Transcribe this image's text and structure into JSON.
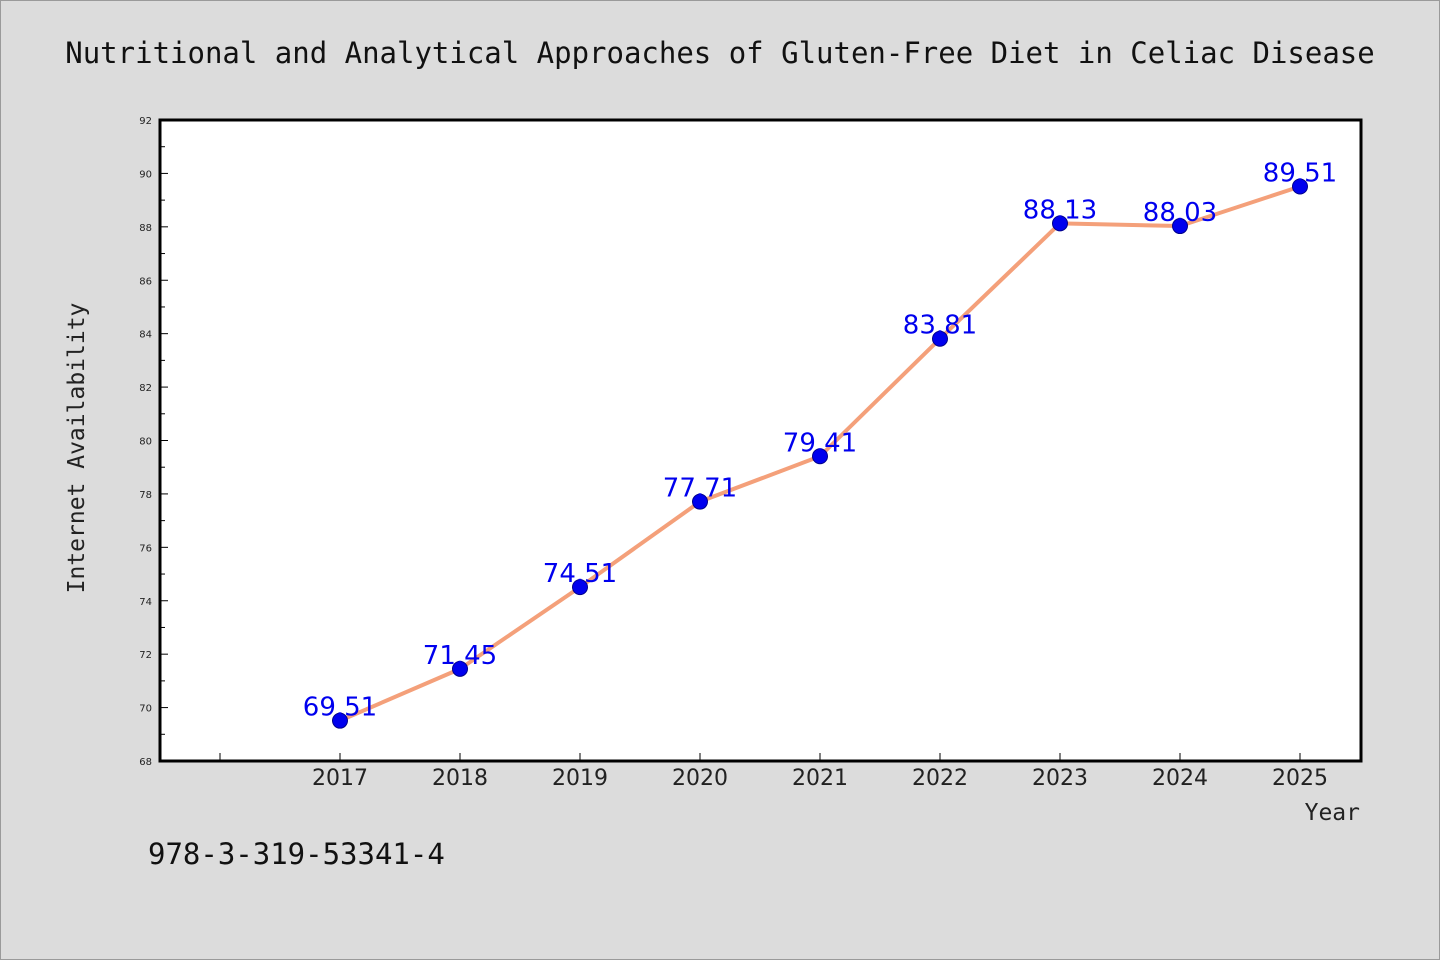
{
  "chart_data": {
    "type": "line",
    "title": "Nutritional and Analytical Approaches of Gluten-Free Diet in Celiac Disease",
    "xlabel": "Year",
    "ylabel": "Internet Availability",
    "categories": [
      "2017",
      "2018",
      "2019",
      "2020",
      "2021",
      "2022",
      "2023",
      "2024",
      "2025"
    ],
    "series": [
      {
        "values": [
          69.51,
          71.45,
          74.51,
          77.71,
          79.41,
          83.81,
          88.13,
          88.03,
          89.51
        ],
        "color": "#f4a07a",
        "marker_color": "#0000ee"
      }
    ],
    "data_labels": [
      "69.51",
      "71.45",
      "74.51",
      "77.71",
      "79.41",
      "83.81",
      "88.13",
      "88.03",
      "89.51"
    ],
    "ylim": [
      68,
      92
    ],
    "yticks": [
      "68",
      "70",
      "72",
      "74",
      "76",
      "78",
      "80",
      "82",
      "84",
      "86",
      "88",
      "90",
      "92"
    ],
    "grid": false,
    "label_color": "#0000ee"
  },
  "footer": {
    "isbn": "978-3-319-53341-4"
  }
}
